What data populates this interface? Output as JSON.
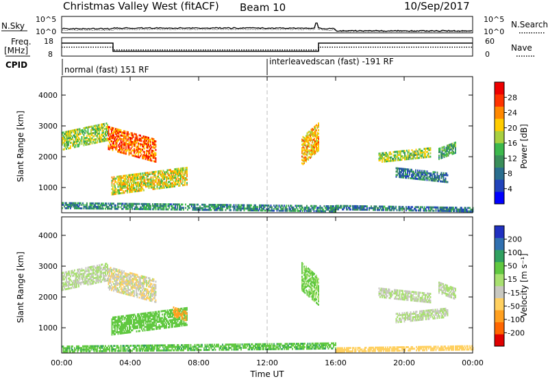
{
  "header": {
    "station": "Christmas Valley West (fitACF)",
    "beam": "Beam 10",
    "date": "10/Sep/2017"
  },
  "noise_panel": {
    "left_label": "N.Sky",
    "right_label": "N.Search",
    "left_ticks": [
      "10^5",
      "10^0"
    ],
    "right_ticks": [
      "10^5",
      "10^0"
    ]
  },
  "freq_panel": {
    "left_label_1": "Freq.",
    "left_label_2": "[MHz]",
    "right_label": "Nave",
    "left_ticks": [
      "18",
      "8"
    ],
    "right_ticks": [
      "60",
      "0"
    ]
  },
  "cpid": {
    "label": "CPID",
    "modes": [
      {
        "name": "normal (fast) 151 RF",
        "start_hour": 0
      },
      {
        "name": "interleavedscan (fast) -191 RF",
        "start_hour": 12
      }
    ]
  },
  "colors": {
    "power": [
      "#0000ff",
      "#2244bb",
      "#2a6e8e",
      "#3a8e5a",
      "#3cb84c",
      "#a8d040",
      "#ffcc00",
      "#ff8800",
      "#ff3300",
      "#ee0000"
    ],
    "velocity": [
      "#e00000",
      "#ff6600",
      "#ffa020",
      "#ffd060",
      "#c8c8c0",
      "#a8e070",
      "#60c840",
      "#30a060",
      "#3070b0",
      "#2030c0"
    ],
    "ground_scatter": "#c8c8c0"
  },
  "chart_data": [
    {
      "type": "heatmap",
      "name": "power",
      "xlabel": "",
      "ylabel": "Slant Range [km]",
      "xlim": [
        0,
        24
      ],
      "ylim": [
        180,
        4600
      ],
      "x_ticks": [
        "00:00",
        "04:00",
        "08:00",
        "12:00",
        "16:00",
        "20:00",
        "00:00"
      ],
      "y_ticks": [
        1000,
        2000,
        3000,
        4000
      ],
      "colorbar": {
        "label": "Power [dB]",
        "ticks": [
          "4",
          "8",
          "12",
          "16",
          "20",
          "24",
          "28"
        ],
        "range": [
          0,
          30
        ]
      },
      "regions": [
        {
          "t0": 0.0,
          "t1": 2.7,
          "r0": 2200,
          "r1": 3100,
          "v": 16
        },
        {
          "t0": 2.7,
          "t1": 5.5,
          "r0": 1800,
          "r1": 3000,
          "v": 24
        },
        {
          "t0": 2.9,
          "t1": 7.3,
          "r0": 750,
          "r1": 1650,
          "v": 18
        },
        {
          "t0": 0.0,
          "t1": 16.0,
          "r0": 200,
          "r1": 500,
          "v": 10
        },
        {
          "t0": 14.0,
          "t1": 15.0,
          "r0": 1700,
          "r1": 3100,
          "v": 20
        },
        {
          "t0": 16.0,
          "t1": 24.0,
          "r0": 200,
          "r1": 400,
          "v": 8
        },
        {
          "t0": 18.5,
          "t1": 21.5,
          "r0": 1800,
          "r1": 2300,
          "v": 16
        },
        {
          "t0": 19.5,
          "t1": 22.5,
          "r0": 1150,
          "r1": 1650,
          "v": 8
        },
        {
          "t0": 22.0,
          "t1": 23.0,
          "r0": 1900,
          "r1": 2500,
          "v": 12
        }
      ]
    },
    {
      "type": "heatmap",
      "name": "velocity",
      "xlabel": "Time UT",
      "ylabel": "Slant Range [km]",
      "xlim": [
        0,
        24
      ],
      "ylim": [
        180,
        4600
      ],
      "x_ticks": [
        "00:00",
        "04:00",
        "08:00",
        "12:00",
        "16:00",
        "20:00",
        "00:00"
      ],
      "y_ticks": [
        1000,
        2000,
        3000,
        4000
      ],
      "colorbar": {
        "label": "Velocity [m s⁻¹]",
        "ticks": [
          "200",
          "100",
          "50",
          "15",
          "-15",
          "-50",
          "-100",
          "-200"
        ]
      },
      "regions": [
        {
          "t0": 0.0,
          "t1": 2.7,
          "r0": 2200,
          "r1": 3100,
          "v": 0
        },
        {
          "t0": 2.7,
          "t1": 5.5,
          "r0": 1800,
          "r1": 3000,
          "v": -10
        },
        {
          "t0": 2.9,
          "t1": 7.3,
          "r0": 750,
          "r1": 1650,
          "v": 30
        },
        {
          "t0": 6.5,
          "t1": 7.3,
          "r0": 1200,
          "r1": 1650,
          "v": -60
        },
        {
          "t0": 0.0,
          "t1": 16.0,
          "r0": 200,
          "r1": 500,
          "v": 40
        },
        {
          "t0": 14.0,
          "t1": 15.0,
          "r0": 1700,
          "r1": 3100,
          "v": 20
        },
        {
          "t0": 16.0,
          "t1": 24.0,
          "r0": 200,
          "r1": 400,
          "v": -30
        },
        {
          "t0": 18.5,
          "t1": 21.5,
          "r0": 1800,
          "r1": 2300,
          "v": 0
        },
        {
          "t0": 19.5,
          "t1": 22.5,
          "r0": 1150,
          "r1": 1650,
          "v": 0
        },
        {
          "t0": 22.0,
          "t1": 23.0,
          "r0": 1900,
          "r1": 2500,
          "v": 0
        }
      ]
    }
  ]
}
